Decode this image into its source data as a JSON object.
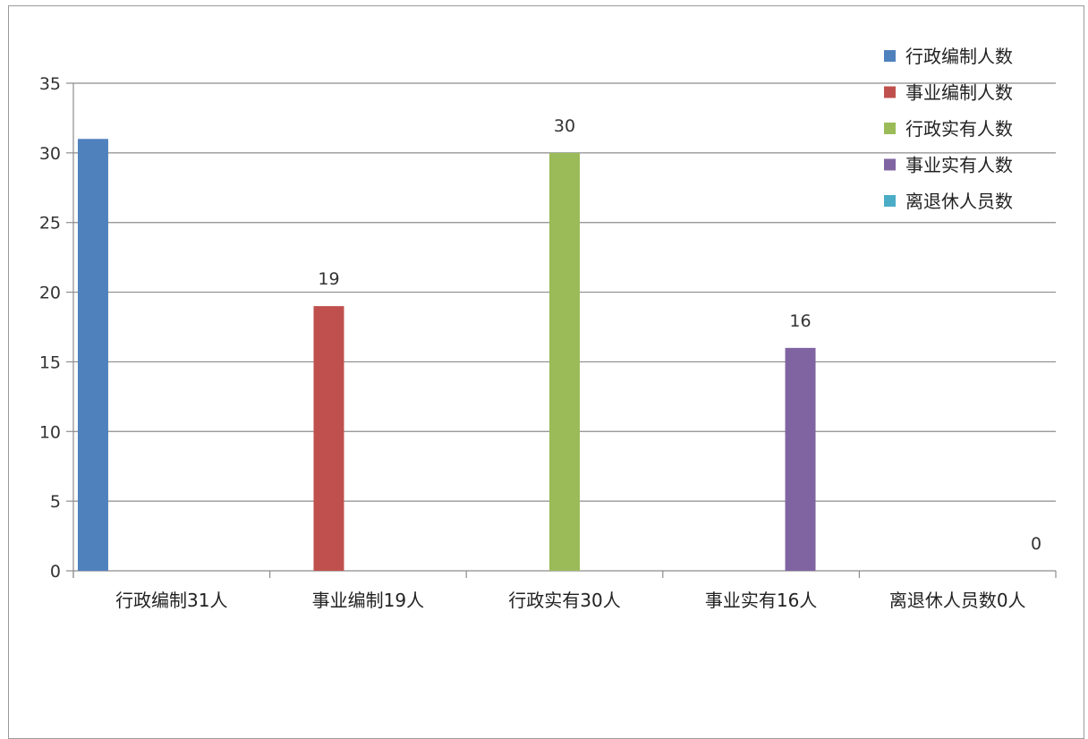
{
  "chart_data": {
    "type": "bar",
    "title": "",
    "xlabel": "",
    "ylabel": "",
    "ylim": [
      0,
      35
    ],
    "yticks": [
      0,
      5,
      10,
      15,
      20,
      25,
      30,
      35
    ],
    "grid": true,
    "legend_position": "top-right",
    "categories": [
      "行政编制31人",
      "事业编制19人",
      "行政实有30人",
      "事业实有16人",
      "离退休人员数0人"
    ],
    "series": [
      {
        "name": "行政编制人数",
        "color": "#4F81BD",
        "values": [
          31,
          null,
          null,
          null,
          null
        ],
        "labels": [
          null,
          null,
          null,
          null,
          null
        ]
      },
      {
        "name": "事业编制人数",
        "color": "#C0504D",
        "values": [
          null,
          19,
          null,
          null,
          null
        ],
        "labels": [
          null,
          "19",
          null,
          null,
          null
        ]
      },
      {
        "name": "行政实有人数",
        "color": "#9BBB59",
        "values": [
          null,
          null,
          30,
          null,
          null
        ],
        "labels": [
          null,
          null,
          "30",
          null,
          null
        ]
      },
      {
        "name": "事业实有人数",
        "color": "#8064A2",
        "values": [
          null,
          null,
          null,
          16,
          null
        ],
        "labels": [
          null,
          null,
          null,
          "16",
          null
        ]
      },
      {
        "name": "离退休人员数",
        "color": "#4BACC6",
        "values": [
          null,
          null,
          null,
          null,
          0
        ],
        "labels": [
          null,
          null,
          null,
          null,
          "0"
        ]
      }
    ]
  }
}
